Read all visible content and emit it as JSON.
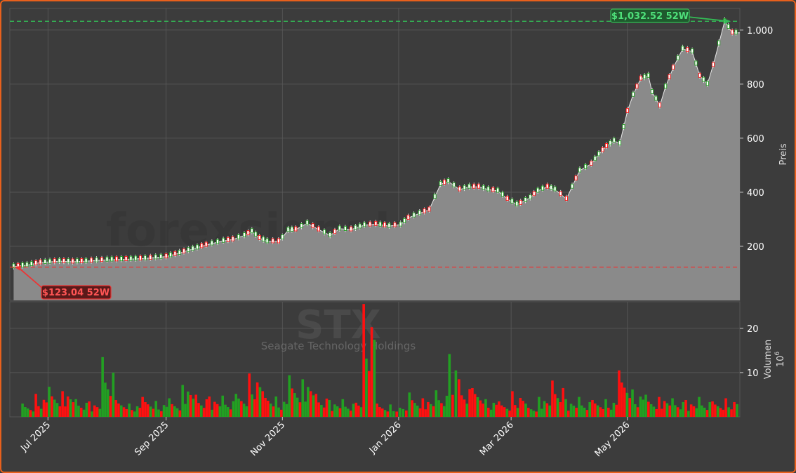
{
  "chart_data": {
    "type": "candlestick",
    "title": "",
    "ticker": "STX",
    "company": "Seagate Technology Holdings",
    "watermark": "forexsignals.trade",
    "colors": {
      "up": "#22a022",
      "down": "#ff1010",
      "high_line": "#33bb55",
      "low_line": "#ee3333",
      "area": "#8a8a8a"
    },
    "price_axis": {
      "label": "Preis",
      "ylim": [
        0,
        1080
      ],
      "ticks": [
        "200",
        "400",
        "600",
        "800",
        "1.000"
      ],
      "tick_values": [
        200,
        400,
        600,
        800,
        1000
      ]
    },
    "volume_axis": {
      "label": "Volumen",
      "unit": "10",
      "unit_exp": "6",
      "ylim": [
        0,
        26
      ],
      "ticks": [
        "10",
        "20"
      ],
      "tick_values": [
        10,
        20
      ]
    },
    "x_axis": {
      "range": [
        "2025-06-11",
        "2026-06-29"
      ],
      "ticks": [
        "Jul 2025",
        "Sep 2025",
        "Nov 2025",
        "Jan 2026",
        "Mar 2026",
        "May 2026"
      ],
      "tick_dates": [
        "2025-07-01",
        "2025-09-01",
        "2025-11-01",
        "2026-01-01",
        "2026-03-01",
        "2026-05-01"
      ]
    },
    "high_52w": {
      "value": 1032.52,
      "label": "$1,032.52 52W",
      "date": "2026-06-25"
    },
    "low_52w": {
      "value": 123.04,
      "label": "$123.04 52W",
      "date": "2025-06-13"
    },
    "price_series": [
      [
        "2025-06-13",
        125
      ],
      [
        "2025-06-20",
        130
      ],
      [
        "2025-06-27",
        140
      ],
      [
        "2025-07-07",
        145
      ],
      [
        "2025-07-14",
        143
      ],
      [
        "2025-07-21",
        145
      ],
      [
        "2025-08-01",
        150
      ],
      [
        "2025-08-11",
        152
      ],
      [
        "2025-08-21",
        155
      ],
      [
        "2025-09-01",
        162
      ],
      [
        "2025-09-08",
        175
      ],
      [
        "2025-09-15",
        190
      ],
      [
        "2025-09-22",
        205
      ],
      [
        "2025-10-01",
        220
      ],
      [
        "2025-10-06",
        225
      ],
      [
        "2025-10-12",
        240
      ],
      [
        "2025-10-16",
        255
      ],
      [
        "2025-10-20",
        230
      ],
      [
        "2025-10-24",
        218
      ],
      [
        "2025-10-30",
        218
      ],
      [
        "2025-11-01",
        232
      ],
      [
        "2025-11-04",
        260
      ],
      [
        "2025-11-08",
        262
      ],
      [
        "2025-11-14",
        285
      ],
      [
        "2025-11-20",
        262
      ],
      [
        "2025-11-26",
        240
      ],
      [
        "2025-12-01",
        265
      ],
      [
        "2025-12-07",
        262
      ],
      [
        "2025-12-14",
        278
      ],
      [
        "2025-12-20",
        282
      ],
      [
        "2025-12-27",
        275
      ],
      [
        "2026-01-02",
        280
      ],
      [
        "2026-01-06",
        305
      ],
      [
        "2026-01-12",
        322
      ],
      [
        "2026-01-17",
        335
      ],
      [
        "2026-01-23",
        430
      ],
      [
        "2026-01-27",
        440
      ],
      [
        "2026-02-02",
        410
      ],
      [
        "2026-02-07",
        420
      ],
      [
        "2026-02-12",
        420
      ],
      [
        "2026-02-17",
        410
      ],
      [
        "2026-02-22",
        405
      ],
      [
        "2026-02-27",
        375
      ],
      [
        "2026-03-04",
        355
      ],
      [
        "2026-03-06",
        360
      ],
      [
        "2026-03-11",
        380
      ],
      [
        "2026-03-15",
        405
      ],
      [
        "2026-03-20",
        420
      ],
      [
        "2026-03-24",
        410
      ],
      [
        "2026-03-30",
        375
      ],
      [
        "2026-04-02",
        420
      ],
      [
        "2026-04-06",
        480
      ],
      [
        "2026-04-12",
        505
      ],
      [
        "2026-04-16",
        540
      ],
      [
        "2026-04-20",
        570
      ],
      [
        "2026-04-24",
        590
      ],
      [
        "2026-04-27",
        580
      ],
      [
        "2026-05-01",
        700
      ],
      [
        "2026-05-04",
        760
      ],
      [
        "2026-05-08",
        820
      ],
      [
        "2026-05-12",
        830
      ],
      [
        "2026-05-14",
        770
      ],
      [
        "2026-05-18",
        720
      ],
      [
        "2026-05-21",
        790
      ],
      [
        "2026-05-25",
        860
      ],
      [
        "2026-05-30",
        930
      ],
      [
        "2026-06-04",
        920
      ],
      [
        "2026-06-08",
        830
      ],
      [
        "2026-06-12",
        800
      ],
      [
        "2026-06-15",
        870
      ],
      [
        "2026-06-18",
        950
      ],
      [
        "2026-06-21",
        1032
      ],
      [
        "2026-06-25",
        990
      ],
      [
        "2026-06-29",
        990
      ]
    ],
    "volume_series": [
      [
        "2025-06-17",
        3.0,
        "up"
      ],
      [
        "2025-06-24",
        5.2,
        "down"
      ],
      [
        "2025-07-01",
        6.8,
        "up"
      ],
      [
        "2025-07-08",
        5.8,
        "down"
      ],
      [
        "2025-07-15",
        4.0,
        "up"
      ],
      [
        "2025-07-22",
        3.5,
        "down"
      ],
      [
        "2025-07-29",
        13.5,
        "up"
      ],
      [
        "2025-08-05",
        3.8,
        "down"
      ],
      [
        "2025-08-12",
        3.0,
        "up"
      ],
      [
        "2025-08-19",
        4.5,
        "down"
      ],
      [
        "2025-08-26",
        3.6,
        "up"
      ],
      [
        "2025-09-02",
        4.2,
        "up"
      ],
      [
        "2025-09-09",
        7.2,
        "up"
      ],
      [
        "2025-09-16",
        5.0,
        "down"
      ],
      [
        "2025-09-23",
        4.6,
        "down"
      ],
      [
        "2025-09-30",
        4.8,
        "up"
      ],
      [
        "2025-10-07",
        5.2,
        "up"
      ],
      [
        "2025-10-14",
        9.8,
        "down"
      ],
      [
        "2025-10-21",
        5.8,
        "down"
      ],
      [
        "2025-10-28",
        4.6,
        "up"
      ],
      [
        "2025-11-04",
        9.4,
        "up"
      ],
      [
        "2025-11-11",
        8.5,
        "up"
      ],
      [
        "2025-11-18",
        5.2,
        "down"
      ],
      [
        "2025-11-25",
        3.8,
        "up"
      ],
      [
        "2025-12-02",
        4.0,
        "up"
      ],
      [
        "2025-12-09",
        3.2,
        "down"
      ],
      [
        "2025-12-13",
        25.5,
        "down"
      ],
      [
        "2025-12-20",
        3.0,
        "down"
      ],
      [
        "2025-12-27",
        2.8,
        "up"
      ],
      [
        "2026-01-06",
        5.5,
        "up"
      ],
      [
        "2026-01-13",
        4.2,
        "down"
      ],
      [
        "2026-01-20",
        6.0,
        "up"
      ],
      [
        "2026-01-27",
        14.2,
        "up"
      ],
      [
        "2026-02-01",
        8.5,
        "down"
      ],
      [
        "2026-02-08",
        6.5,
        "down"
      ],
      [
        "2026-02-15",
        4.0,
        "up"
      ],
      [
        "2026-02-22",
        3.5,
        "down"
      ],
      [
        "2026-03-01",
        5.8,
        "down"
      ],
      [
        "2026-03-08",
        3.0,
        "up"
      ],
      [
        "2026-03-15",
        4.5,
        "up"
      ],
      [
        "2026-03-22",
        8.2,
        "down"
      ],
      [
        "2026-03-29",
        4.0,
        "up"
      ],
      [
        "2026-04-05",
        4.5,
        "up"
      ],
      [
        "2026-04-12",
        3.8,
        "down"
      ],
      [
        "2026-04-19",
        4.0,
        "up"
      ],
      [
        "2026-04-26",
        10.5,
        "down"
      ],
      [
        "2026-05-03",
        6.2,
        "up"
      ],
      [
        "2026-05-10",
        5.0,
        "up"
      ],
      [
        "2026-05-17",
        4.5,
        "down"
      ],
      [
        "2026-05-24",
        4.2,
        "up"
      ],
      [
        "2026-05-31",
        3.8,
        "down"
      ],
      [
        "2026-06-07",
        4.5,
        "up"
      ],
      [
        "2026-06-14",
        3.5,
        "down"
      ],
      [
        "2026-06-21",
        4.2,
        "down"
      ]
    ]
  }
}
